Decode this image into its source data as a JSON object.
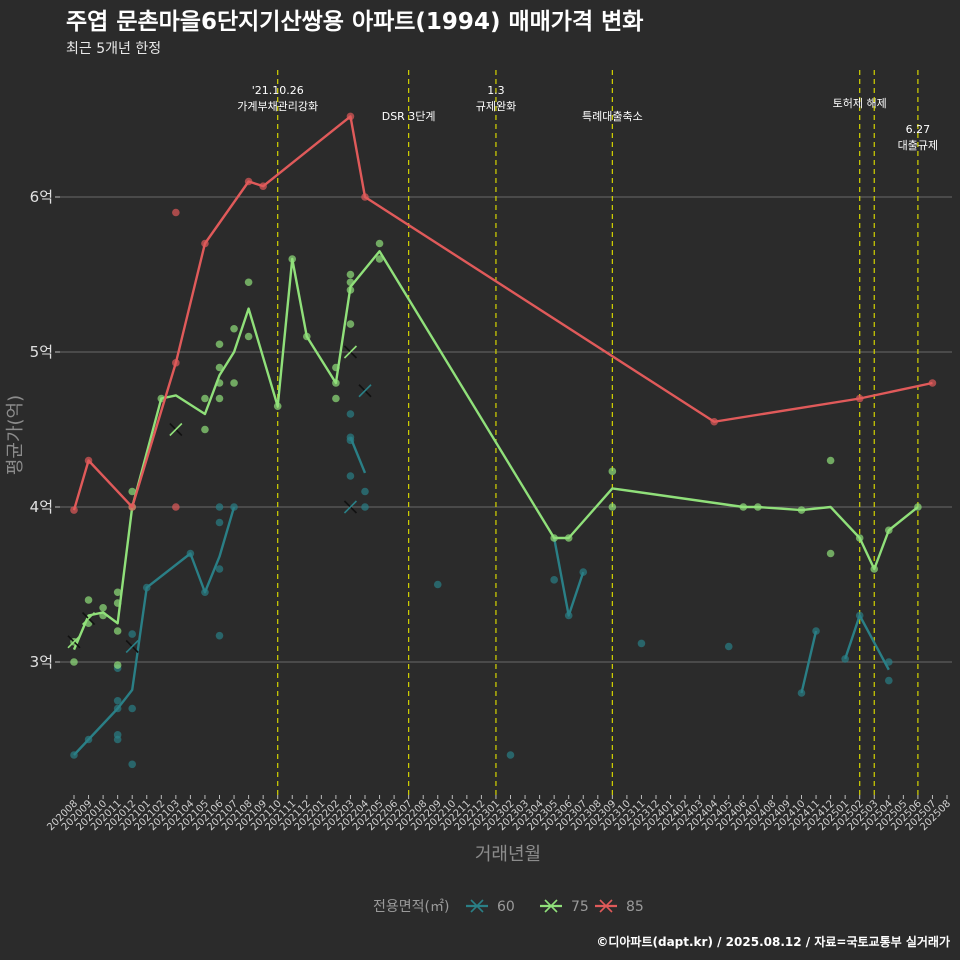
{
  "chart_data": {
    "type": "line",
    "title": "주엽 문촌마을6단지기산쌍용 아파트(1994) 매매가격 변화",
    "subtitle": "최근 5개년 한정",
    "xlabel": "거래년월",
    "ylabel": "평균가(억)",
    "caption": "©디아파트(dapt.kr) / 2025.08.12 / 자료=국토교통부 실거래가",
    "legend_title": "전용면적(㎡)",
    "legend_position": "bottom",
    "grid": true,
    "x_categories": [
      "202008",
      "202009",
      "202010",
      "202011",
      "202012",
      "202101",
      "202102",
      "202103",
      "202104",
      "202105",
      "202106",
      "202107",
      "202108",
      "202109",
      "202110",
      "202111",
      "202112",
      "202201",
      "202202",
      "202203",
      "202204",
      "202205",
      "202206",
      "202207",
      "202208",
      "202209",
      "202210",
      "202211",
      "202212",
      "202301",
      "202302",
      "202303",
      "202304",
      "202305",
      "202306",
      "202307",
      "202308",
      "202309",
      "202310",
      "202311",
      "202312",
      "202401",
      "202402",
      "202403",
      "202404",
      "202405",
      "202406",
      "202407",
      "202408",
      "202409",
      "202410",
      "202411",
      "202412",
      "202501",
      "202502",
      "202503",
      "202504",
      "202505",
      "202506",
      "202507",
      "202508"
    ],
    "y_ticks": [
      {
        "value": 3,
        "label": "3억"
      },
      {
        "value": 4,
        "label": "4억"
      },
      {
        "value": 5,
        "label": "5억"
      },
      {
        "value": 6,
        "label": "6억"
      }
    ],
    "ylim": [
      2.2,
      6.9
    ],
    "events": [
      {
        "x": "202110",
        "label": [
          "'21.10.26",
          "가계부채관리강화"
        ],
        "level": 0
      },
      {
        "x": "202207",
        "label": [
          "DSR 3단계"
        ],
        "level": 1
      },
      {
        "x": "202301",
        "label": [
          "1.3",
          "규제완화"
        ],
        "level": 0
      },
      {
        "x": "202309",
        "label": [
          "특례대출축소"
        ],
        "level": 1
      },
      {
        "x": "202502",
        "label": [
          "토허제 해제"
        ],
        "level": 0.5
      },
      {
        "x": "202503",
        "label": [],
        "level": 0
      },
      {
        "x": "202506",
        "label": [
          "6.27",
          "대출규제"
        ],
        "level": 1.5
      }
    ],
    "series": [
      {
        "name": "60",
        "color": "#2a7f86",
        "line": [
          {
            "x": "202008",
            "y": 2.4
          },
          {
            "x": "202009",
            "y": 2.5
          },
          {
            "x": "202011",
            "y": 2.7
          },
          {
            "x": "202012",
            "y": 2.82
          },
          {
            "x": "202101",
            "y": 3.48
          },
          {
            "x": "202104",
            "y": 3.7
          },
          {
            "x": "202105",
            "y": 3.45
          },
          {
            "x": "202106",
            "y": 3.68
          },
          {
            "x": "202107",
            "y": 4.0
          },
          null,
          {
            "x": "202203",
            "y": 4.45
          },
          {
            "x": "202204",
            "y": 4.22
          },
          null,
          {
            "x": "202305",
            "y": 3.8
          },
          {
            "x": "202306",
            "y": 3.3
          },
          {
            "x": "202307",
            "y": 3.58
          },
          null,
          {
            "x": "202410",
            "y": 2.8
          },
          {
            "x": "202411",
            "y": 3.2
          },
          null,
          {
            "x": "202501",
            "y": 3.02
          },
          {
            "x": "202502",
            "y": 3.3
          },
          {
            "x": "202504",
            "y": 2.95
          }
        ],
        "points": [
          {
            "x": "202008",
            "y": 2.4
          },
          {
            "x": "202009",
            "y": 2.5
          },
          {
            "x": "202011",
            "y": 2.53
          },
          {
            "x": "202011",
            "y": 2.75
          },
          {
            "x": "202011",
            "y": 2.7
          },
          {
            "x": "202011",
            "y": 2.96
          },
          {
            "x": "202011",
            "y": 2.5
          },
          {
            "x": "202012",
            "y": 2.34
          },
          {
            "x": "202012",
            "y": 2.7
          },
          {
            "x": "202012",
            "y": 3.18
          },
          {
            "x": "202101",
            "y": 3.48
          },
          {
            "x": "202104",
            "y": 3.7
          },
          {
            "x": "202105",
            "y": 3.45
          },
          {
            "x": "202106",
            "y": 3.6
          },
          {
            "x": "202106",
            "y": 3.9
          },
          {
            "x": "202106",
            "y": 4.0
          },
          {
            "x": "202106",
            "y": 3.17
          },
          {
            "x": "202107",
            "y": 4.0
          },
          {
            "x": "202203",
            "y": 4.6
          },
          {
            "x": "202203",
            "y": 4.45
          },
          {
            "x": "202203",
            "y": 4.43
          },
          {
            "x": "202203",
            "y": 4.2
          },
          {
            "x": "202204",
            "y": 4.1
          },
          {
            "x": "202204",
            "y": 4.0
          },
          {
            "x": "202209",
            "y": 3.5
          },
          {
            "x": "202302",
            "y": 2.4
          },
          {
            "x": "202305",
            "y": 3.53
          },
          {
            "x": "202306",
            "y": 3.3
          },
          {
            "x": "202307",
            "y": 3.58
          },
          {
            "x": "202311",
            "y": 3.12
          },
          {
            "x": "202405",
            "y": 3.1
          },
          {
            "x": "202410",
            "y": 2.8
          },
          {
            "x": "202411",
            "y": 3.2
          },
          {
            "x": "202501",
            "y": 3.02
          },
          {
            "x": "202502",
            "y": 3.3
          },
          {
            "x": "202504",
            "y": 2.88
          },
          {
            "x": "202504",
            "y": 3.0
          }
        ],
        "crosses": [
          {
            "x": "202012",
            "y": 3.1
          },
          {
            "x": "202203",
            "y": 4.0
          },
          {
            "x": "202204",
            "y": 4.75
          }
        ]
      },
      {
        "name": "75",
        "color": "#90e07a",
        "line": [
          {
            "x": "202008",
            "y": 3.08
          },
          {
            "x": "202009",
            "y": 3.3
          },
          {
            "x": "202010",
            "y": 3.32
          },
          {
            "x": "202011",
            "y": 3.25
          },
          {
            "x": "202012",
            "y": 4.0
          },
          {
            "x": "202102",
            "y": 4.7
          },
          {
            "x": "202103",
            "y": 4.72
          },
          {
            "x": "202105",
            "y": 4.6
          },
          {
            "x": "202106",
            "y": 4.85
          },
          {
            "x": "202107",
            "y": 5.0
          },
          {
            "x": "202108",
            "y": 5.28
          },
          {
            "x": "202110",
            "y": 4.65
          },
          {
            "x": "202111",
            "y": 5.6
          },
          {
            "x": "202112",
            "y": 5.1
          },
          {
            "x": "202202",
            "y": 4.8
          },
          {
            "x": "202203",
            "y": 5.42
          },
          {
            "x": "202205",
            "y": 5.65
          },
          {
            "x": "202305",
            "y": 3.8
          },
          {
            "x": "202306",
            "y": 3.8
          },
          {
            "x": "202309",
            "y": 4.12
          },
          {
            "x": "202406",
            "y": 4.0
          },
          {
            "x": "202407",
            "y": 4.0
          },
          {
            "x": "202410",
            "y": 3.98
          },
          {
            "x": "202412",
            "y": 4.0
          },
          {
            "x": "202502",
            "y": 3.8
          },
          {
            "x": "202503",
            "y": 3.6
          },
          {
            "x": "202504",
            "y": 3.85
          },
          {
            "x": "202506",
            "y": 4.0
          }
        ],
        "points": [
          {
            "x": "202008",
            "y": 3.0
          },
          {
            "x": "202008",
            "y": 3.13
          },
          {
            "x": "202009",
            "y": 3.25
          },
          {
            "x": "202009",
            "y": 3.4
          },
          {
            "x": "202010",
            "y": 3.35
          },
          {
            "x": "202010",
            "y": 3.3
          },
          {
            "x": "202011",
            "y": 3.45
          },
          {
            "x": "202011",
            "y": 3.38
          },
          {
            "x": "202011",
            "y": 3.2
          },
          {
            "x": "202011",
            "y": 2.98
          },
          {
            "x": "202012",
            "y": 4.1
          },
          {
            "x": "202012",
            "y": 4.0
          },
          {
            "x": "202102",
            "y": 4.7
          },
          {
            "x": "202105",
            "y": 4.7
          },
          {
            "x": "202105",
            "y": 4.5
          },
          {
            "x": "202106",
            "y": 5.05
          },
          {
            "x": "202106",
            "y": 4.9
          },
          {
            "x": "202106",
            "y": 4.8
          },
          {
            "x": "202106",
            "y": 4.7
          },
          {
            "x": "202107",
            "y": 5.15
          },
          {
            "x": "202107",
            "y": 4.8
          },
          {
            "x": "202108",
            "y": 5.45
          },
          {
            "x": "202108",
            "y": 5.1
          },
          {
            "x": "202110",
            "y": 4.65
          },
          {
            "x": "202111",
            "y": 5.6
          },
          {
            "x": "202112",
            "y": 5.1
          },
          {
            "x": "202202",
            "y": 4.9
          },
          {
            "x": "202202",
            "y": 4.8
          },
          {
            "x": "202202",
            "y": 4.7
          },
          {
            "x": "202203",
            "y": 5.5
          },
          {
            "x": "202203",
            "y": 5.45
          },
          {
            "x": "202203",
            "y": 5.4
          },
          {
            "x": "202203",
            "y": 5.18
          },
          {
            "x": "202205",
            "y": 5.7
          },
          {
            "x": "202205",
            "y": 5.6
          },
          {
            "x": "202305",
            "y": 3.8
          },
          {
            "x": "202306",
            "y": 3.8
          },
          {
            "x": "202309",
            "y": 4.23
          },
          {
            "x": "202309",
            "y": 4.0
          },
          {
            "x": "202406",
            "y": 4.0
          },
          {
            "x": "202407",
            "y": 4.0
          },
          {
            "x": "202410",
            "y": 3.98
          },
          {
            "x": "202412",
            "y": 4.3
          },
          {
            "x": "202412",
            "y": 3.7
          },
          {
            "x": "202502",
            "y": 3.8
          },
          {
            "x": "202503",
            "y": 3.6
          },
          {
            "x": "202504",
            "y": 3.85
          },
          {
            "x": "202506",
            "y": 4.0
          }
        ],
        "crosses": [
          {
            "x": "202008",
            "y": 3.13
          },
          {
            "x": "202009",
            "y": 3.28
          },
          {
            "x": "202103",
            "y": 4.5
          },
          {
            "x": "202203",
            "y": 5.0
          }
        ]
      },
      {
        "name": "85",
        "color": "#e05a5a",
        "line": [
          {
            "x": "202008",
            "y": 3.98
          },
          {
            "x": "202009",
            "y": 4.3
          },
          {
            "x": "202012",
            "y": 4.0
          },
          {
            "x": "202103",
            "y": 4.93
          },
          {
            "x": "202105",
            "y": 5.7
          },
          {
            "x": "202108",
            "y": 6.1
          },
          {
            "x": "202109",
            "y": 6.07
          },
          {
            "x": "202203",
            "y": 6.52
          },
          {
            "x": "202204",
            "y": 6.0
          },
          {
            "x": "202404",
            "y": 4.55
          },
          {
            "x": "202502",
            "y": 4.7
          },
          {
            "x": "202507",
            "y": 4.8
          }
        ],
        "points": [
          {
            "x": "202008",
            "y": 3.98
          },
          {
            "x": "202009",
            "y": 4.3
          },
          {
            "x": "202012",
            "y": 4.0
          },
          {
            "x": "202103",
            "y": 5.9
          },
          {
            "x": "202103",
            "y": 4.93
          },
          {
            "x": "202103",
            "y": 4.0
          },
          {
            "x": "202105",
            "y": 5.7
          },
          {
            "x": "202108",
            "y": 6.1
          },
          {
            "x": "202109",
            "y": 6.07
          },
          {
            "x": "202203",
            "y": 6.52
          },
          {
            "x": "202204",
            "y": 6.0
          },
          {
            "x": "202404",
            "y": 4.55
          },
          {
            "x": "202502",
            "y": 4.7
          },
          {
            "x": "202507",
            "y": 4.8
          }
        ],
        "crosses": []
      }
    ]
  }
}
